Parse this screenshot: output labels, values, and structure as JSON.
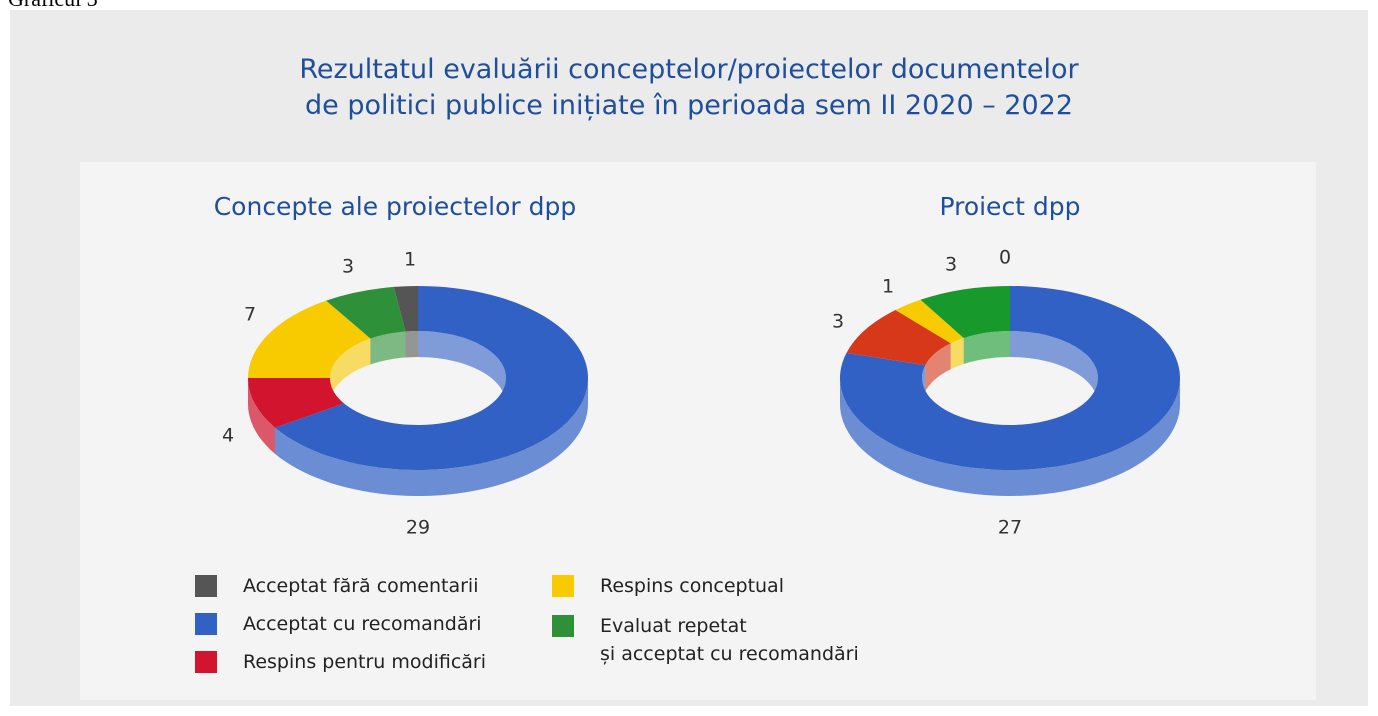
{
  "figure_label": "Graficul 3",
  "title": "Rezultatul evaluării conceptelor/proiectelor documentelor\nde politici publice inițiate în perioada sem II 2020 – 2022",
  "chart_data": [
    {
      "type": "donut",
      "title": "Concepte ale proiectelor dpp",
      "categories": [
        "Acceptat cu recomandări",
        "Respins pentru modificări",
        "Respins conceptual",
        "Evaluat repetat\nși acceptat cu recomandări",
        "Acceptat fără comentarii"
      ],
      "values": [
        29,
        4,
        7,
        3,
        1
      ],
      "colors": [
        "#3161c4",
        "#d2142e",
        "#f7cb00",
        "#2e9139",
        "#555555"
      ]
    },
    {
      "type": "donut",
      "title": "Proiect dpp",
      "categories": [
        "Acceptat cu recomandări",
        "Respins pentru modificări",
        "Respins conceptual",
        "Evaluat repetat\nși acceptat cu recomandări",
        "Acceptat fără comentarii"
      ],
      "values": [
        27,
        3,
        1,
        3,
        0
      ],
      "colors": [
        "#3161c4",
        "#d7381a",
        "#f7cb00",
        "#17992b",
        "#555555"
      ]
    }
  ]
}
